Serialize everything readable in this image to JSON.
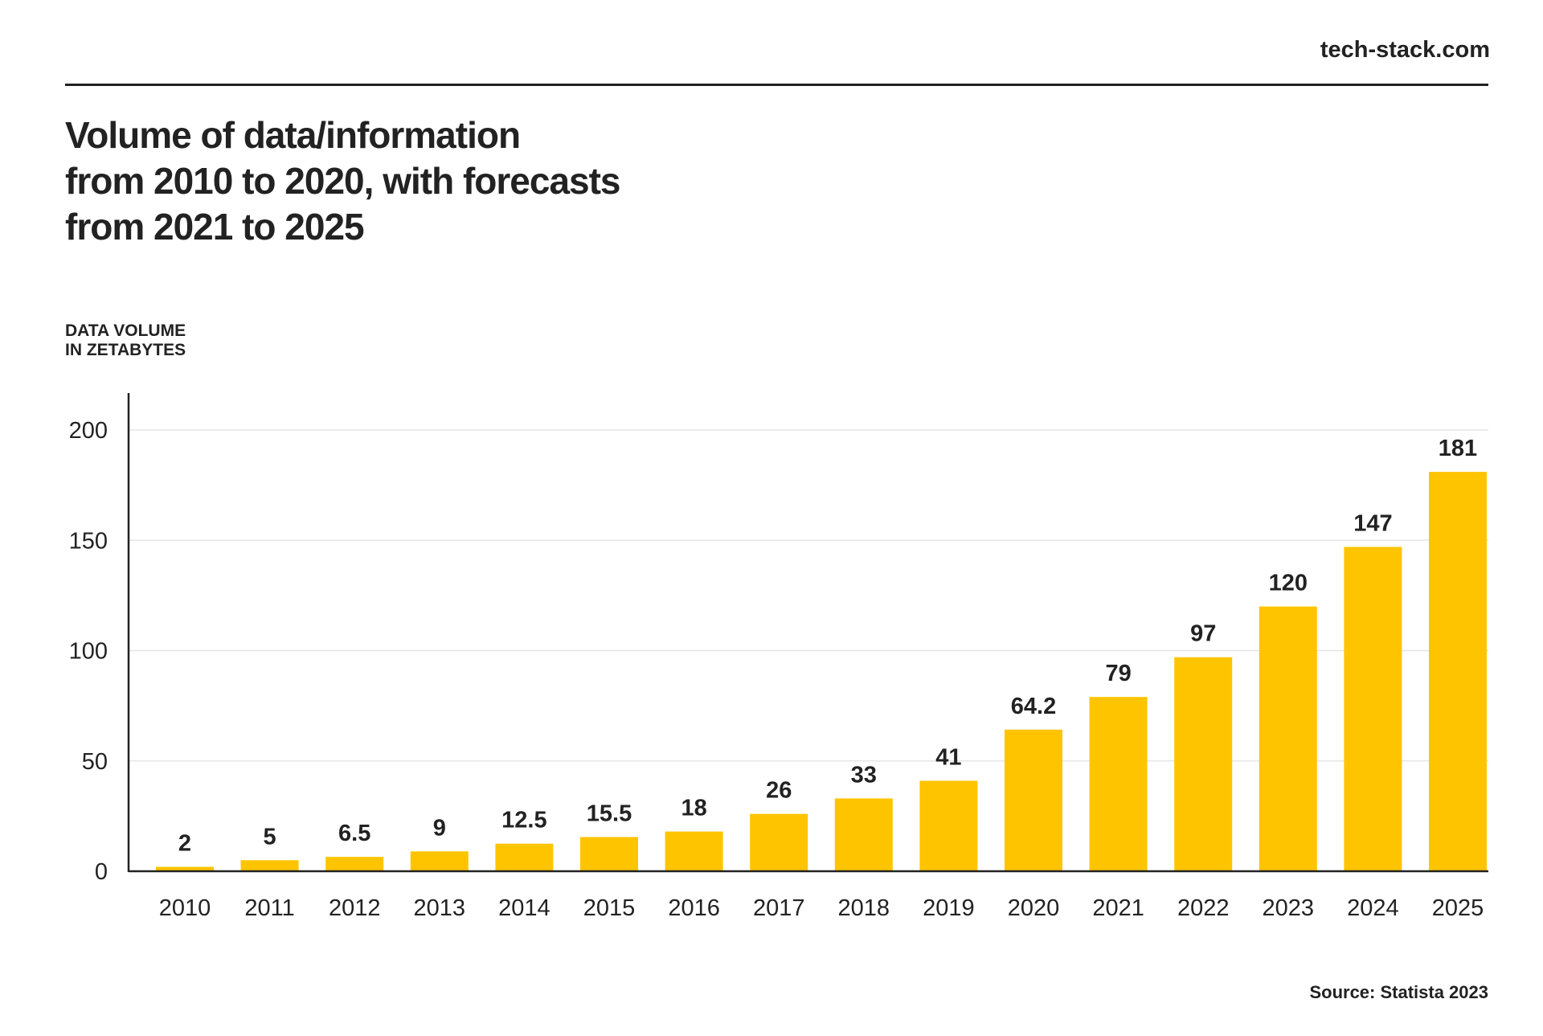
{
  "brand": "tech-stack.com",
  "title_lines": [
    "Volume of data/information",
    "from 2010 to 2020, with forecasts",
    "from 2021 to 2025"
  ],
  "ylabel_lines": [
    "DATA VOLUME",
    "IN ZETABYTES"
  ],
  "source": "Source: Statista 2023",
  "colors": {
    "bar": "#FFC400",
    "text": "#222222",
    "grid": "#e6e6e6"
  },
  "chart_data": {
    "type": "bar",
    "categories": [
      "2010",
      "2011",
      "2012",
      "2013",
      "2014",
      "2015",
      "2016",
      "2017",
      "2018",
      "2019",
      "2020",
      "2021",
      "2022",
      "2023",
      "2024",
      "2025"
    ],
    "values": [
      2,
      5,
      6.5,
      9,
      12.5,
      15.5,
      18,
      26,
      33,
      41,
      64.2,
      79,
      97,
      120,
      147,
      181
    ],
    "value_labels": [
      "2",
      "5",
      "6.5",
      "9",
      "12.5",
      "15.5",
      "18",
      "26",
      "33",
      "41",
      "64.2",
      "79",
      "97",
      "120",
      "147",
      "181"
    ],
    "yticks": [
      0,
      50,
      100,
      150,
      200
    ],
    "ylim": [
      0,
      215
    ],
    "ylabel": "DATA VOLUME IN ZETABYTES",
    "grid": true
  }
}
